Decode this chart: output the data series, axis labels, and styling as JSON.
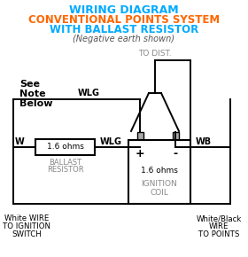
{
  "title_line1": "WIRING DIAGRAM",
  "title_line2": "CONVENTIONAL POINTS SYSTEM",
  "title_line3": "WITH BALLAST RESISTOR",
  "subtitle": "(Negative earth shown)",
  "title_color": "#00aaff",
  "title_line2_color": "#ff6600",
  "title_line3_color": "#00aaff",
  "subtitle_color": "#555555",
  "bg_color": "#ffffff",
  "line_color": "#000000",
  "gray_color": "#888888",
  "note_text": [
    "See",
    "Note",
    "Below"
  ],
  "to_dist_text": "TO DIST.",
  "ballast_label1": "BALLAST",
  "ballast_label2": "RESISTOR",
  "ballast_ohms": "1.6 ohms",
  "coil_ohms": "1.6 ohms",
  "coil_label1": "IGNITION",
  "coil_label2": "COIL",
  "wire_w_line1": "White WIRE",
  "wire_w_line2": "TO IGNITION",
  "wire_w_line3": "SWITCH",
  "wire_wb_line1": "White/Black",
  "wire_wb_line2": "WIRE",
  "wire_wb_line3": "TO POINTS",
  "w_label": "W",
  "wlg_label": "WLG",
  "wb_label": "WB",
  "plus_label": "+",
  "minus_label": "-"
}
